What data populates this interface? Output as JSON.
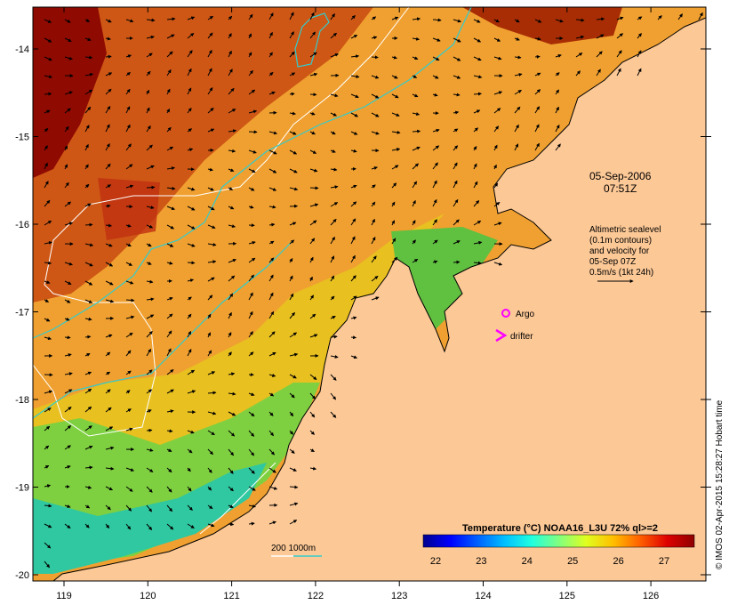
{
  "map": {
    "lon_ticks": [
      "119",
      "120",
      "121",
      "122",
      "123",
      "124",
      "125",
      "126"
    ],
    "lat_ticks": [
      "-14",
      "-15",
      "-16",
      "-17",
      "-18",
      "-19",
      "-20"
    ],
    "date_label": "05-Sep-2006",
    "time_label": "07:51Z",
    "altimetry_lines": [
      "Altimetric sealevel",
      "(0.1m contours)",
      "and velocity for",
      "05-Sep 07Z",
      "0.5m/s (1kt 24h)"
    ],
    "argo_label": "Argo",
    "drifter_label": "drifter",
    "depth_label": "200  1000m",
    "credit": "© IMOS 02-Apr-2015 15:28:27 Hobart time"
  },
  "colorbar": {
    "title": "Temperature (°C) NOAA16_L3U 72% ql>=2",
    "ticks": [
      "22",
      "23",
      "24",
      "25",
      "26",
      "27"
    ],
    "colors": [
      "#00008f",
      "#0000ff",
      "#0060ff",
      "#00bfff",
      "#20ffdf",
      "#80ff80",
      "#dfff20",
      "#ffbf00",
      "#ff6000",
      "#df0000",
      "#8f0000"
    ]
  },
  "colors": {
    "land": "#fcc896",
    "argo": "#ff00ff",
    "drifter": "#ff00ff",
    "isobath_200": "#ffffff",
    "isobath_1000": "#33cccc"
  }
}
